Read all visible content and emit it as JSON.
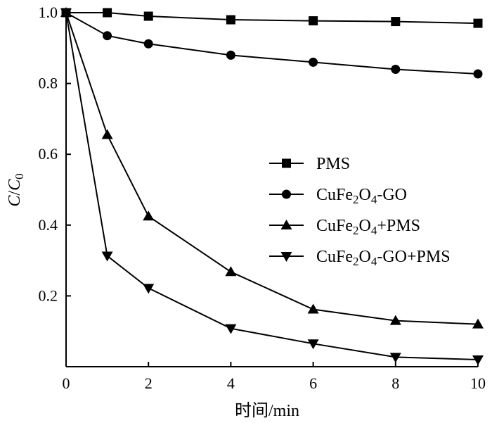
{
  "chart_data": {
    "type": "line",
    "xlabel": "时间/min",
    "ylabel": {
      "main": "C",
      "slash": "/",
      "denom": "C",
      "denom_sub": "0"
    },
    "xlim": [
      0,
      10
    ],
    "ylim": [
      0,
      1.0
    ],
    "xticks": [
      "0",
      "2",
      "4",
      "6",
      "8",
      "10"
    ],
    "yticks": [
      "0.2",
      "0.4",
      "0.6",
      "0.8",
      "1.0"
    ],
    "grid": false,
    "legend_position": "right-middle",
    "x": [
      0,
      1,
      2,
      4,
      6,
      8,
      10
    ],
    "series": [
      {
        "name": "PMS",
        "label_parts": [
          {
            "t": "PMS",
            "sub": false
          }
        ],
        "marker": "square",
        "values": [
          1.0,
          1.0,
          0.99,
          0.98,
          0.977,
          0.975,
          0.97
        ]
      },
      {
        "name": "CuFe2O4-GO",
        "label_parts": [
          {
            "t": "CuFe",
            "sub": false
          },
          {
            "t": "2",
            "sub": true
          },
          {
            "t": "O",
            "sub": false
          },
          {
            "t": "4",
            "sub": true
          },
          {
            "t": "-GO",
            "sub": false
          }
        ],
        "marker": "circle",
        "values": [
          1.0,
          0.935,
          0.912,
          0.88,
          0.86,
          0.84,
          0.827
        ]
      },
      {
        "name": "CuFe2O4+PMS",
        "label_parts": [
          {
            "t": "CuFe",
            "sub": false
          },
          {
            "t": "2",
            "sub": true
          },
          {
            "t": "O",
            "sub": false
          },
          {
            "t": "4",
            "sub": true
          },
          {
            "t": "+PMS",
            "sub": false
          }
        ],
        "marker": "triangle-up",
        "values": [
          1.0,
          0.655,
          0.425,
          0.268,
          0.162,
          0.13,
          0.12
        ]
      },
      {
        "name": "CuFe2O4-GO+PMS",
        "label_parts": [
          {
            "t": "CuFe",
            "sub": false
          },
          {
            "t": "2",
            "sub": true
          },
          {
            "t": "O",
            "sub": false
          },
          {
            "t": "4",
            "sub": true
          },
          {
            "t": "-GO+PMS",
            "sub": false
          }
        ],
        "marker": "triangle-down",
        "values": [
          1.0,
          0.313,
          0.222,
          0.108,
          0.065,
          0.027,
          0.02
        ]
      }
    ],
    "colors": {
      "line": "#000000",
      "background": "#ffffff"
    }
  }
}
